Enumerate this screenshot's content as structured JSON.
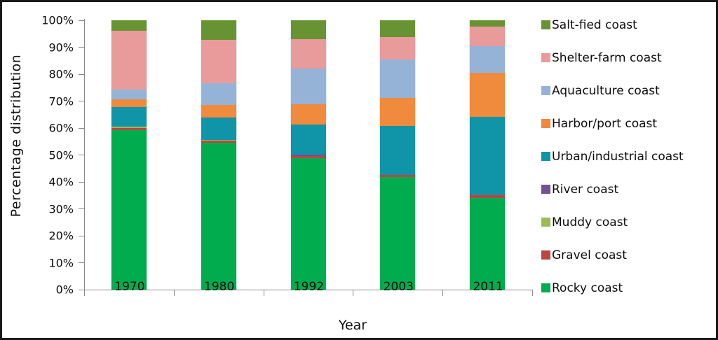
{
  "chart_data": {
    "type": "bar",
    "variant": "100-percent-stacked-column",
    "title": "",
    "xlabel": "Year",
    "ylabel": "Percentage distribution",
    "categories": [
      "1970",
      "1980",
      "1992",
      "2003",
      "2011"
    ],
    "y_ticks": [
      "0%",
      "10%",
      "20%",
      "30%",
      "40%",
      "50%",
      "60%",
      "70%",
      "80%",
      "90%",
      "100%"
    ],
    "ylim": [
      0,
      100
    ],
    "grid": false,
    "legend_position": "right",
    "axis_color": "#898989",
    "series": [
      {
        "name": "Rocky coast",
        "color": "#00AC4E",
        "values": [
          59.3,
          54.6,
          48.9,
          41.7,
          34.1
        ]
      },
      {
        "name": "Gravel coast",
        "color": "#BC4542",
        "values": [
          0.6,
          0.7,
          0.7,
          0.8,
          1.0
        ]
      },
      {
        "name": "Muddy coast",
        "color": "#9BBB59",
        "values": [
          0.7,
          0.3,
          0.0,
          0.0,
          0.0
        ]
      },
      {
        "name": "River coast",
        "color": "#71518F",
        "values": [
          0.0,
          0.0,
          0.5,
          0.0,
          0.0
        ]
      },
      {
        "name": "Urban/industrial coast",
        "color": "#1094A7",
        "values": [
          7.1,
          8.4,
          11.2,
          18.2,
          29.0
        ]
      },
      {
        "name": "Harbor/port coast",
        "color": "#F08A3C",
        "values": [
          2.9,
          4.6,
          7.5,
          10.5,
          16.3
        ]
      },
      {
        "name": "Aquaculture coast",
        "color": "#95B3D7",
        "values": [
          3.7,
          8.0,
          13.4,
          14.2,
          10.0
        ]
      },
      {
        "name": "Shelter-farm coast",
        "color": "#E99B9B",
        "values": [
          21.8,
          16.2,
          10.8,
          8.5,
          7.2
        ]
      },
      {
        "name": "Salt-fied coast",
        "color": "#689333",
        "values": [
          3.9,
          7.2,
          7.0,
          6.1,
          2.4
        ]
      }
    ],
    "legend_order_note": "legend shown top-to-bottom is reverse of stacking order (bottom of stack listed last)"
  }
}
